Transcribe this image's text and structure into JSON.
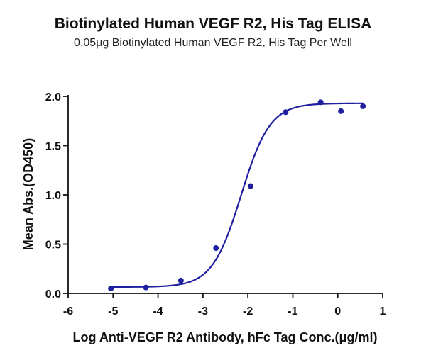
{
  "chart_data": {
    "type": "scatter",
    "title": "Biotinylated Human VEGF R2, His Tag ELISA",
    "subtitle": "0.05μg Biotinylated Human VEGF R2, His Tag Per Well",
    "xlabel": "Log Anti-VEGF R2 Antibody, hFc Tag Conc.(μg/ml)",
    "ylabel": "Mean Abs.(OD450)",
    "xlim": [
      -6,
      1
    ],
    "ylim": [
      0,
      2.0
    ],
    "xticks": [
      "-6",
      "-5",
      "-4",
      "-3",
      "-2",
      "-1",
      "0",
      "1"
    ],
    "yticks": [
      "0.0",
      "0.5",
      "1.0",
      "1.5",
      "2.0"
    ],
    "grid": false,
    "color": "#1f1fa0",
    "series": [
      {
        "x": [
          -5.05,
          -4.27,
          -3.49,
          -2.71,
          -1.94,
          -1.16,
          -0.38,
          0.07,
          0.56
        ],
        "y": [
          0.05,
          0.06,
          0.13,
          0.46,
          1.09,
          1.84,
          1.94,
          1.85,
          1.9
        ]
      }
    ],
    "fit": {
      "model": "4PL",
      "bottom": 0.065,
      "top": 1.93,
      "logEC50": -2.15,
      "hill": 1.35,
      "x_range": [
        -5.05,
        0.56
      ]
    }
  }
}
